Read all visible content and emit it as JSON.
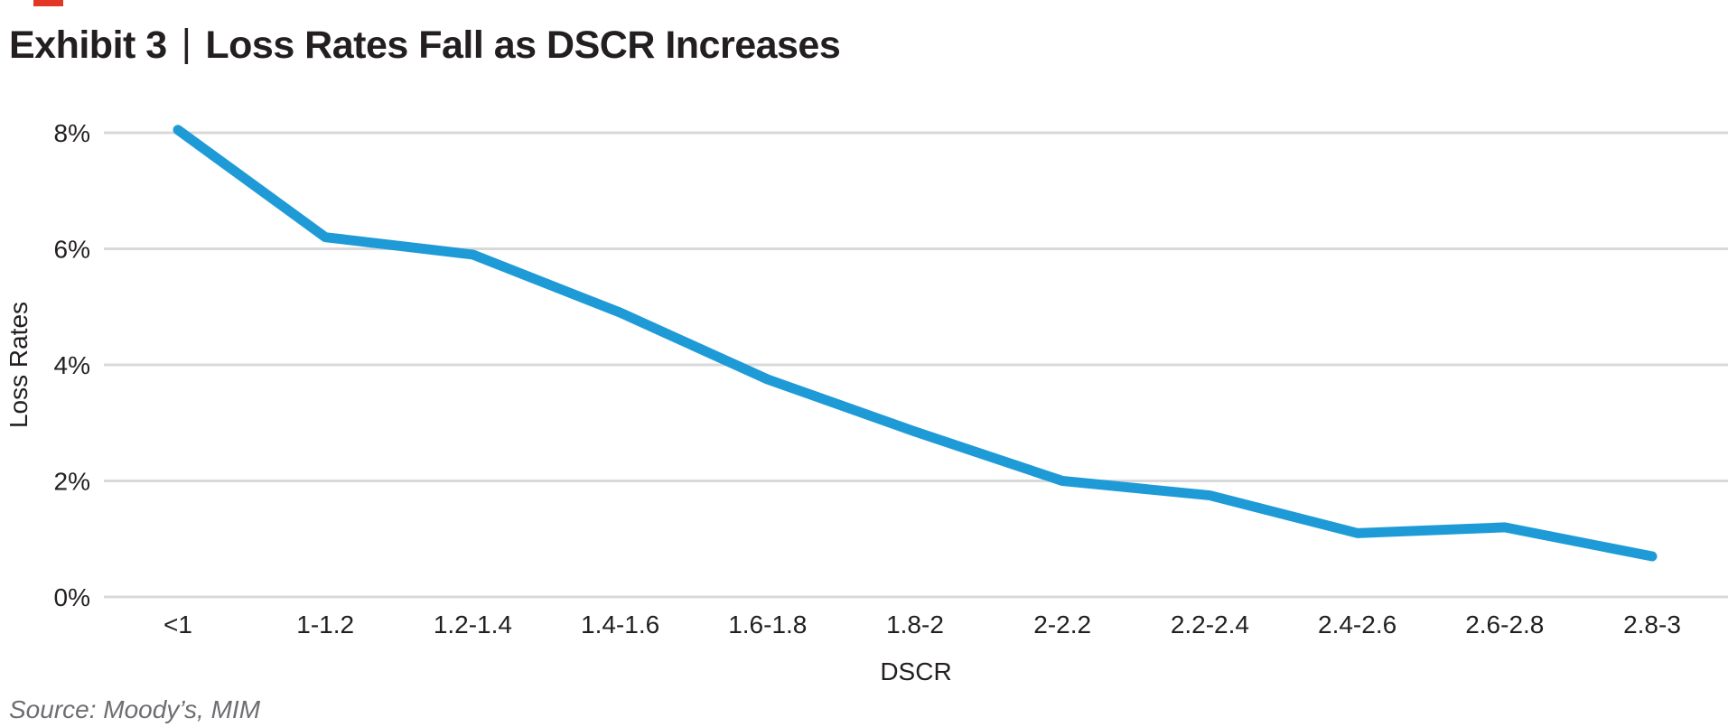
{
  "accent_bar_color": "#E23724",
  "header": {
    "exhibit_label": "Exhibit 3",
    "separator": "|",
    "title": "Loss Rates Fall as DSCR Increases"
  },
  "footer": {
    "source": "Source: Moody’s, MIM"
  },
  "chart_data": {
    "type": "line",
    "title": "Loss Rates Fall as DSCR Increases",
    "xlabel": "DSCR",
    "ylabel": "Loss Rates",
    "categories": [
      "<1",
      "1-1.2",
      "1.2-1.4",
      "1.4-1.6",
      "1.6-1.8",
      "1.8-2",
      "2-2.2",
      "2.2-2.4",
      "2.4-2.6",
      "2.6-2.8",
      "2.8-3"
    ],
    "series": [
      {
        "name": "Loss Rates",
        "values": [
          8.05,
          6.2,
          5.9,
          4.9,
          3.75,
          2.85,
          2.0,
          1.75,
          1.1,
          1.2,
          0.7
        ]
      }
    ],
    "ylim": [
      0,
      8
    ],
    "ytick_values": [
      0,
      2,
      4,
      6,
      8
    ],
    "ytick_labels": [
      "0%",
      "2%",
      "4%",
      "6%",
      "8%"
    ],
    "grid": "horizontal-only",
    "legend": "none",
    "line_color": "#1E9BD7",
    "grid_color": "#D9D9D9",
    "text_color": "#231F20"
  }
}
